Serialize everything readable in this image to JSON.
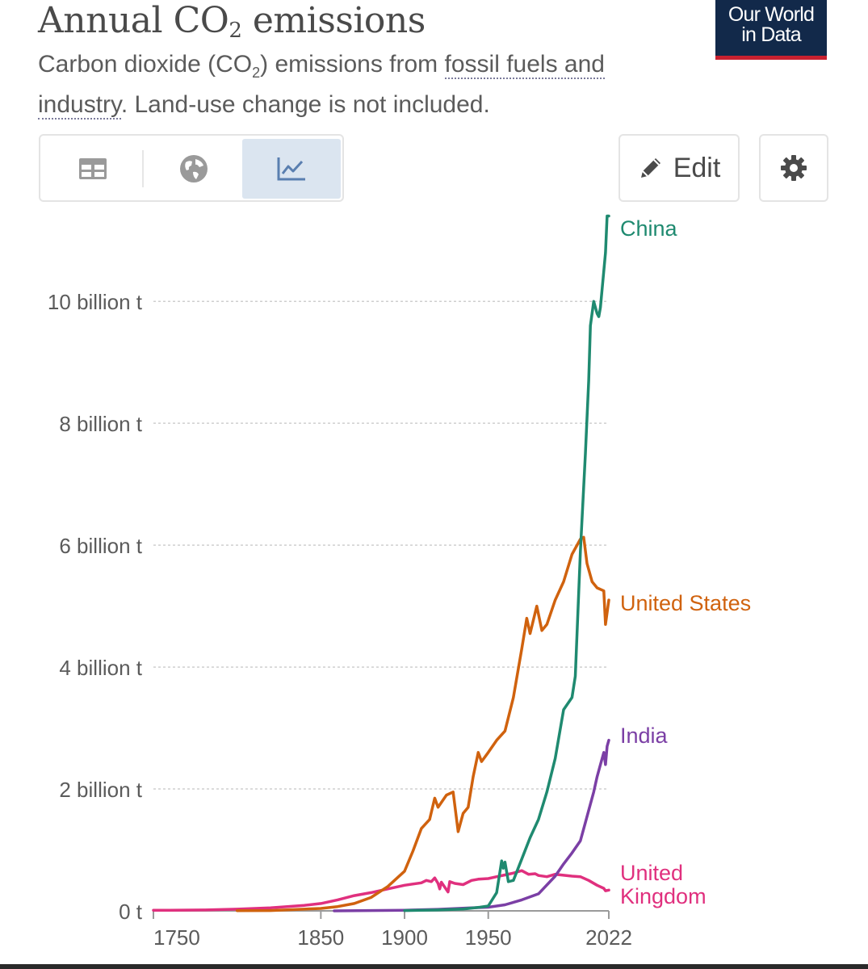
{
  "header": {
    "title_main": "Annual CO",
    "title_sub": "2",
    "title_rest": " emissions",
    "subtitle_a": "Carbon dioxide (CO",
    "subtitle_sub": "2",
    "subtitle_b": ") emissions from ",
    "subtitle_link": "fossil fuels and industry",
    "subtitle_c": ". Land-use change is not included.",
    "logo_line1": "Our World",
    "logo_line2": "in Data"
  },
  "toolbar": {
    "edit_label": "Edit",
    "tabs": [
      "table-icon",
      "globe-icon",
      "line-chart-icon"
    ],
    "active_tab": "line-chart-icon",
    "settings_icon": "gear-icon",
    "edit_icon": "pencil-icon"
  },
  "colors": {
    "China": "#1f8a70",
    "United States": "#d0620e",
    "India": "#7b3fa5",
    "United Kingdom": "#e0307e",
    "logo_bg": "#12294a",
    "logo_accent": "#c8202f",
    "active_tab_bg": "#dbe5f0"
  },
  "chart_data": {
    "type": "line",
    "title": "Annual CO₂ emissions",
    "xlabel": "",
    "ylabel": "",
    "xlim": [
      1750,
      2022
    ],
    "ylim": [
      0,
      11500000000
    ],
    "x_ticks": [
      1750,
      1850,
      1900,
      1950,
      2022
    ],
    "x_tick_labels": [
      "1750",
      "1850",
      "1900",
      "1950",
      "2022"
    ],
    "y_ticks": [
      0,
      2000000000,
      4000000000,
      6000000000,
      8000000000,
      10000000000
    ],
    "y_tick_labels": [
      "0 t",
      "2 billion t",
      "4 billion t",
      "6 billion t",
      "8 billion t",
      "10 billion t"
    ],
    "grid": "horizontal-dotted",
    "legend": "line-end labels",
    "series": [
      {
        "name": "China",
        "label_lines": [
          "China"
        ],
        "color": "#1f8a70",
        "x": [
          1900,
          1920,
          1935,
          1945,
          1950,
          1955,
          1958,
          1959,
          1960,
          1962,
          1965,
          1970,
          1975,
          1980,
          1985,
          1990,
          1995,
          2000,
          2002,
          2005,
          2008,
          2010,
          2011,
          2013,
          2015,
          2016,
          2017,
          2019,
          2020,
          2021,
          2022
        ],
        "y": [
          5000000,
          15000000,
          30000000,
          60000000,
          80000000,
          300000000,
          820000000,
          700000000,
          800000000,
          480000000,
          500000000,
          850000000,
          1200000000,
          1500000000,
          1950000000,
          2500000000,
          3300000000,
          3500000000,
          3850000000,
          5900000000,
          7500000000,
          8700000000,
          9600000000,
          10000000000,
          9800000000,
          9750000000,
          9900000000,
          10500000000,
          10800000000,
          11400000000,
          11400000000
        ]
      },
      {
        "name": "United States",
        "label_lines": [
          "United States"
        ],
        "color": "#d0620e",
        "x": [
          1800,
          1820,
          1850,
          1860,
          1870,
          1880,
          1890,
          1900,
          1905,
          1910,
          1915,
          1918,
          1920,
          1925,
          1929,
          1932,
          1935,
          1938,
          1941,
          1944,
          1946,
          1950,
          1955,
          1960,
          1965,
          1970,
          1973,
          1975,
          1979,
          1982,
          1985,
          1990,
          1995,
          2000,
          2005,
          2007,
          2009,
          2012,
          2015,
          2019,
          2020,
          2022
        ],
        "y": [
          2000000,
          5000000,
          40000000,
          70000000,
          120000000,
          220000000,
          400000000,
          650000000,
          980000000,
          1350000000,
          1500000000,
          1850000000,
          1700000000,
          1900000000,
          1950000000,
          1300000000,
          1600000000,
          1700000000,
          2200000000,
          2600000000,
          2450000000,
          2600000000,
          2800000000,
          2950000000,
          3500000000,
          4300000000,
          4800000000,
          4550000000,
          5000000000,
          4600000000,
          4700000000,
          5100000000,
          5400000000,
          5850000000,
          6100000000,
          6130000000,
          5700000000,
          5400000000,
          5300000000,
          5250000000,
          4700000000,
          5100000000
        ]
      },
      {
        "name": "India",
        "label_lines": [
          "India"
        ],
        "color": "#7b3fa5",
        "x": [
          1858,
          1900,
          1920,
          1940,
          1950,
          1960,
          1970,
          1980,
          1990,
          1995,
          2000,
          2005,
          2008,
          2010,
          2013,
          2015,
          2017,
          2019,
          2020,
          2021,
          2022
        ],
        "y": [
          0,
          10000000,
          25000000,
          50000000,
          60000000,
          100000000,
          180000000,
          280000000,
          570000000,
          770000000,
          950000000,
          1150000000,
          1450000000,
          1650000000,
          1950000000,
          2200000000,
          2400000000,
          2600000000,
          2400000000,
          2700000000,
          2800000000
        ]
      },
      {
        "name": "United Kingdom",
        "label_lines": [
          "United",
          "Kingdom"
        ],
        "color": "#e0307e",
        "x": [
          1750,
          1760,
          1780,
          1800,
          1820,
          1840,
          1850,
          1860,
          1870,
          1880,
          1890,
          1900,
          1910,
          1913,
          1916,
          1918,
          1920,
          1921,
          1922,
          1926,
          1927,
          1930,
          1935,
          1940,
          1944,
          1950,
          1955,
          1960,
          1965,
          1970,
          1974,
          1978,
          1980,
          1985,
          1990,
          2000,
          2005,
          2010,
          2015,
          2019,
          2020,
          2022
        ],
        "y": [
          9000000,
          10000000,
          15000000,
          28000000,
          50000000,
          90000000,
          120000000,
          180000000,
          250000000,
          300000000,
          360000000,
          420000000,
          460000000,
          500000000,
          480000000,
          540000000,
          450000000,
          360000000,
          470000000,
          310000000,
          480000000,
          450000000,
          430000000,
          500000000,
          520000000,
          530000000,
          560000000,
          590000000,
          620000000,
          660000000,
          600000000,
          610000000,
          580000000,
          560000000,
          600000000,
          570000000,
          560000000,
          500000000,
          420000000,
          370000000,
          330000000,
          340000000
        ]
      }
    ]
  }
}
